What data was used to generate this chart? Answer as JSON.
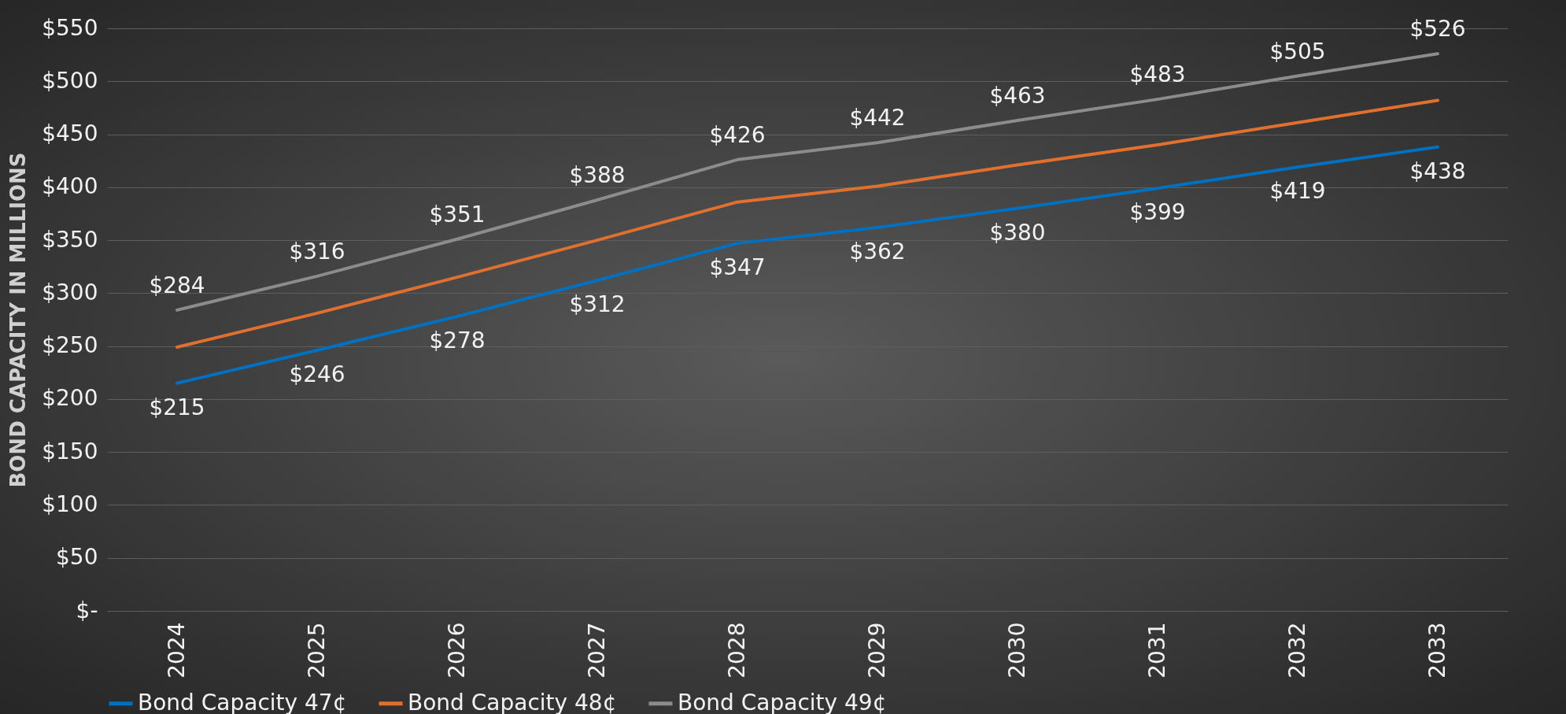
{
  "chart_data": {
    "type": "line",
    "ylabel": "BOND CAPACITY IN MILLIONS",
    "categories": [
      "2024",
      "2025",
      "2026",
      "2027",
      "2028",
      "2029",
      "2030",
      "2031",
      "2032",
      "2033"
    ],
    "series": [
      {
        "name": "Bond Capacity 47¢",
        "color": "#0070c0",
        "values": [
          215,
          246,
          278,
          312,
          347,
          362,
          380,
          399,
          419,
          438
        ],
        "value_labels": [
          "$215",
          "$246",
          "$278",
          "$312",
          "$347",
          "$362",
          "$380",
          "$399",
          "$419",
          "$438"
        ]
      },
      {
        "name": "Bond Capacity 48¢",
        "color": "#e07030",
        "values": [
          249,
          281,
          315,
          350,
          386,
          401,
          421,
          440,
          461,
          482
        ]
      },
      {
        "name": "Bond Capacity 49¢",
        "color": "#8c8c8c",
        "values": [
          284,
          316,
          351,
          388,
          426,
          442,
          463,
          483,
          505,
          526
        ],
        "value_labels": [
          "$284",
          "$316",
          "$351",
          "$388",
          "$426",
          "$442",
          "$463",
          "$483",
          "$505",
          "$526"
        ]
      }
    ],
    "ylim": [
      0,
      550
    ],
    "yticks": [
      {
        "value": 0,
        "label": "$-"
      },
      {
        "value": 50,
        "label": "$50"
      },
      {
        "value": 100,
        "label": "$100"
      },
      {
        "value": 150,
        "label": "$150"
      },
      {
        "value": 200,
        "label": "$200"
      },
      {
        "value": 250,
        "label": "$250"
      },
      {
        "value": 300,
        "label": "$300"
      },
      {
        "value": 350,
        "label": "$350"
      },
      {
        "value": 400,
        "label": "$400"
      },
      {
        "value": 450,
        "label": "$450"
      },
      {
        "value": 500,
        "label": "$500"
      },
      {
        "value": 550,
        "label": "$550"
      }
    ],
    "grid": "y",
    "legend": "bottom",
    "marker": "none",
    "line_style": "solid"
  }
}
